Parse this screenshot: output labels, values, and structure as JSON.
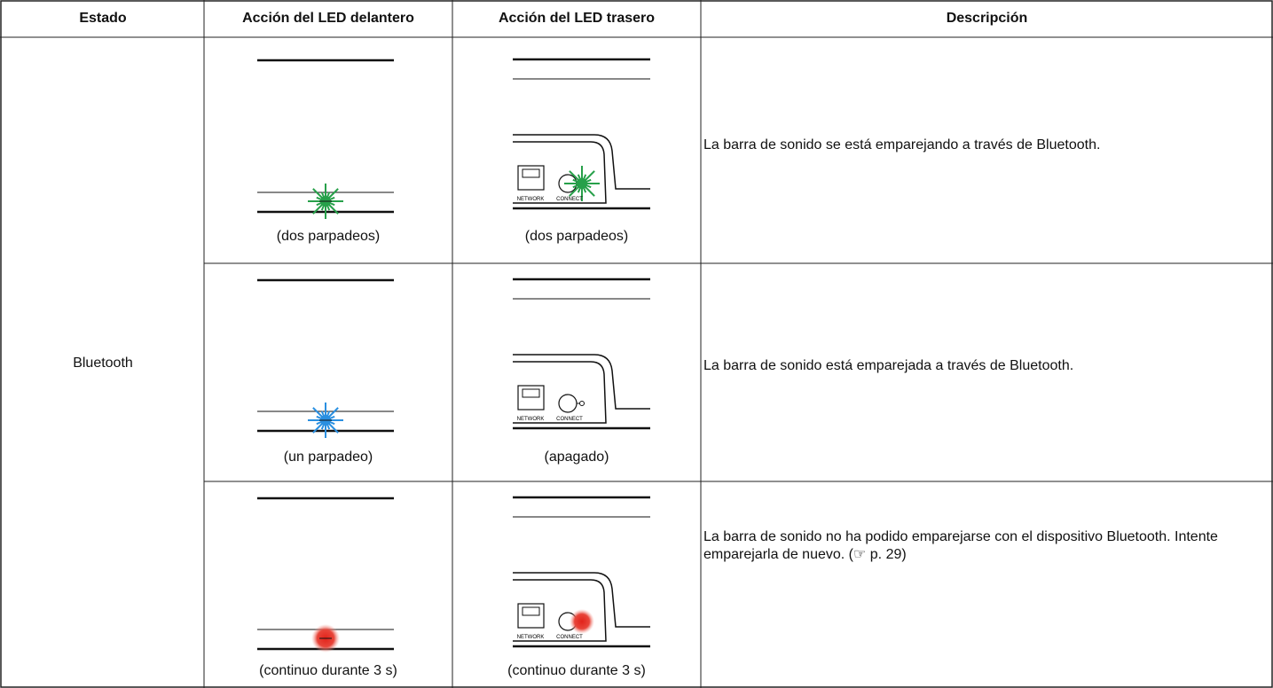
{
  "table": {
    "headers": [
      "Estado",
      "Acción del LED delantero",
      "Acción del LED trasero",
      "Descripción"
    ],
    "state": "Bluetooth",
    "rows": [
      {
        "front": "(dos parpadeos)",
        "rear": "(dos parpadeos)",
        "description": "La barra de sonido se está emparejando a través de Bluetooth."
      },
      {
        "front": "(un parpadeo)",
        "rear": "(apagado)",
        "description": "La barra de sonido está emparejada a través de Bluetooth."
      },
      {
        "front": "(continuo durante 3 s)",
        "rear": "(continuo durante 3 s)",
        "description": "La barra de sonido no ha podido emparejarse con el dispositivo Bluetooth. Intente emparejarla de nuevo.  (☞ p. 29)"
      }
    ],
    "device_labels": {
      "network": "NETWORK",
      "connect": "CONNECT"
    }
  }
}
